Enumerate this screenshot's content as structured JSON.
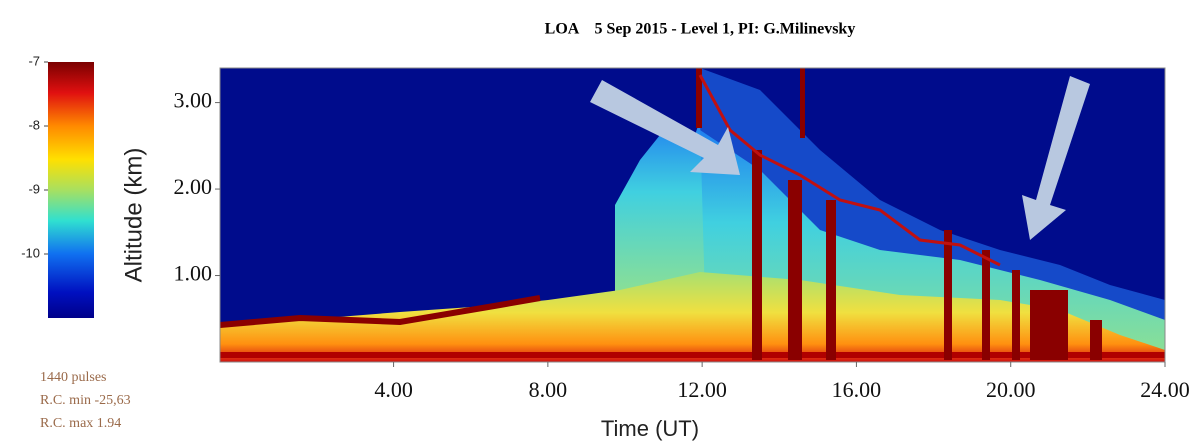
{
  "chart_data": {
    "type": "heatmap",
    "title": "LOA    5 Sep 2015 - Level 1, PI: G.Milinevsky",
    "x_label": "Time (UT)",
    "y_label": "Altitude (km)",
    "xlim": [
      -0.5,
      24
    ],
    "ylim": [
      0,
      3.4
    ],
    "xticks": [
      {
        "value": 4,
        "label": "4.00"
      },
      {
        "value": 8,
        "label": "8.00"
      },
      {
        "value": 12,
        "label": "12.00"
      },
      {
        "value": 16,
        "label": "16.00"
      },
      {
        "value": 20,
        "label": "20.00"
      },
      {
        "value": 24,
        "label": "24.00"
      }
    ],
    "yticks": [
      {
        "value": 1,
        "label": "1.00"
      },
      {
        "value": 2,
        "label": "2.00"
      },
      {
        "value": 3,
        "label": "3.00"
      }
    ],
    "colorbar": {
      "lim": [
        -11,
        -7
      ],
      "ticks": [
        -7,
        -8,
        -9,
        -10
      ]
    },
    "annotations": [
      "1440 pulses",
      "R.C. min -25,63",
      "R.C. max 1.94"
    ]
  }
}
